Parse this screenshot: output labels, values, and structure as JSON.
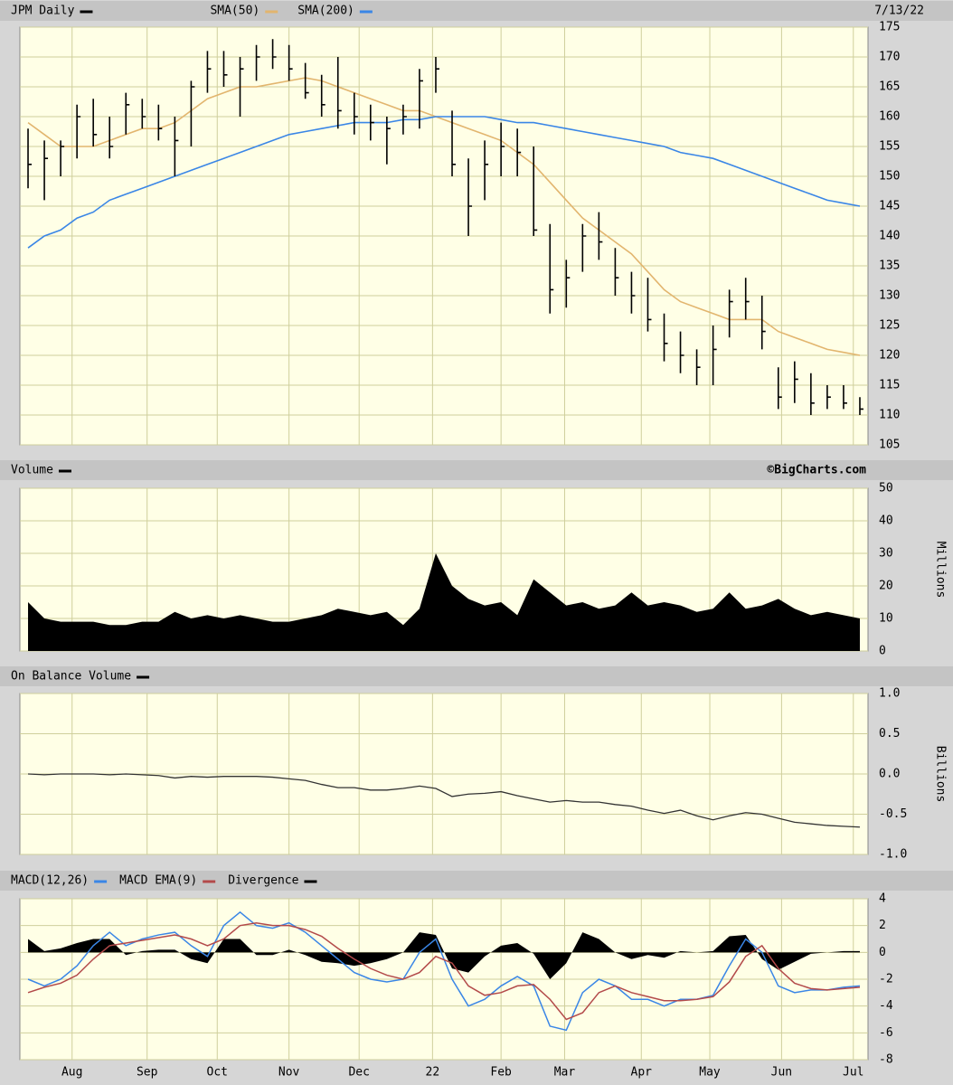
{
  "chart_data": [
    {
      "type": "ohlc",
      "title": "JPM Daily",
      "date": "7/13/22",
      "color": "#000000",
      "high": [
        158,
        156,
        156,
        162,
        163,
        160,
        164,
        163,
        162,
        160,
        166,
        171,
        171,
        170,
        172,
        173,
        172,
        169,
        167,
        170,
        164,
        162,
        160,
        162,
        168,
        170,
        161,
        153,
        156,
        159,
        158,
        155,
        142,
        136,
        142,
        144,
        138,
        134,
        133,
        127,
        124,
        121,
        125,
        131,
        133,
        130,
        118,
        119,
        117,
        115,
        115,
        113
      ],
      "low": [
        148,
        146,
        150,
        153,
        155,
        153,
        157,
        158,
        156,
        150,
        155,
        164,
        165,
        160,
        166,
        168,
        166,
        163,
        160,
        158,
        157,
        156,
        152,
        157,
        158,
        164,
        150,
        140,
        146,
        150,
        150,
        140,
        127,
        128,
        134,
        136,
        130,
        127,
        124,
        119,
        117,
        115,
        115,
        123,
        126,
        121,
        111,
        112,
        110,
        111,
        111,
        110
      ],
      "close": [
        152,
        153,
        155,
        160,
        157,
        155,
        162,
        160,
        158,
        156,
        165,
        168,
        167,
        168,
        170,
        170,
        168,
        164,
        162,
        161,
        160,
        159,
        158,
        160,
        166,
        168,
        152,
        145,
        152,
        155,
        154,
        141,
        131,
        133,
        140,
        139,
        133,
        130,
        126,
        122,
        120,
        118,
        121,
        129,
        129,
        124,
        113,
        116,
        112,
        113,
        112,
        111
      ],
      "overlays": [
        {
          "name": "SMA(50)",
          "color": "#e2b56e",
          "values": [
            159,
            157,
            155,
            155,
            155,
            156,
            157,
            158,
            158,
            159,
            161,
            163,
            164,
            165,
            165,
            165.5,
            166,
            166.5,
            166,
            165,
            164,
            163,
            162,
            161,
            161,
            160,
            159,
            158,
            157,
            156,
            154,
            152,
            149,
            146,
            143,
            141,
            139,
            137,
            134,
            131,
            129,
            128,
            127,
            126,
            126,
            126,
            124,
            123,
            122,
            121,
            120.5,
            120
          ]
        },
        {
          "name": "SMA(200)",
          "color": "#3a86e6",
          "values": [
            138,
            140,
            141,
            143,
            144,
            146,
            147,
            148,
            149,
            150,
            151,
            152,
            153,
            154,
            155,
            156,
            157,
            157.5,
            158,
            158.5,
            159,
            159,
            159,
            159.5,
            159.5,
            160,
            160,
            160,
            160,
            159.5,
            159,
            159,
            158.5,
            158,
            157.5,
            157,
            156.5,
            156,
            155.5,
            155,
            154,
            153.5,
            153,
            152,
            151,
            150,
            149,
            148,
            147,
            146,
            145.5,
            145
          ]
        }
      ],
      "ylim": [
        105,
        175
      ],
      "yticks": [
        105,
        110,
        115,
        120,
        125,
        130,
        135,
        140,
        145,
        150,
        155,
        160,
        165,
        170,
        175
      ]
    },
    {
      "type": "area",
      "title": "Volume",
      "credit": "©BigCharts.com",
      "axis_label": "Millions",
      "color": "#000000",
      "values": [
        15,
        10,
        9,
        9,
        9,
        8,
        8,
        9,
        9,
        12,
        10,
        11,
        10,
        11,
        10,
        9,
        9,
        10,
        11,
        13,
        12,
        11,
        12,
        8,
        13,
        30,
        20,
        16,
        14,
        15,
        11,
        22,
        18,
        14,
        15,
        13,
        14,
        18,
        14,
        15,
        14,
        12,
        13,
        18,
        13,
        14,
        16,
        13,
        11,
        12,
        11,
        10
      ],
      "ylim": [
        0,
        50
      ],
      "yticks": [
        0,
        10,
        20,
        30,
        40,
        50
      ]
    },
    {
      "type": "line",
      "title": "On Balance Volume",
      "axis_label": "Billions",
      "color": "#333333",
      "values": [
        0,
        -0.01,
        0,
        0,
        0,
        -0.01,
        0,
        -0.01,
        -0.02,
        -0.05,
        -0.03,
        -0.04,
        -0.03,
        -0.03,
        -0.03,
        -0.04,
        -0.06,
        -0.08,
        -0.13,
        -0.17,
        -0.17,
        -0.2,
        -0.2,
        -0.18,
        -0.15,
        -0.18,
        -0.28,
        -0.25,
        -0.24,
        -0.22,
        -0.27,
        -0.31,
        -0.35,
        -0.33,
        -0.35,
        -0.35,
        -0.38,
        -0.4,
        -0.45,
        -0.49,
        -0.45,
        -0.52,
        -0.57,
        -0.52,
        -0.48,
        -0.5,
        -0.55,
        -0.6,
        -0.62,
        -0.64,
        -0.65,
        -0.66
      ],
      "ylim": [
        -1,
        1
      ],
      "yticks": [
        {
          "value": -1,
          "label": "-1.0"
        },
        {
          "value": -0.5,
          "label": "-0.5"
        },
        {
          "value": 0,
          "label": "0.0"
        },
        {
          "value": 0.5,
          "label": "0.5"
        },
        {
          "value": 1,
          "label": "1.0"
        }
      ]
    },
    {
      "type": "macd",
      "series": [
        {
          "name": "MACD(12,26)",
          "color": "#3a86e6",
          "kind": "line",
          "values": [
            -2,
            -2.5,
            -2,
            -1,
            0.5,
            1.5,
            0.5,
            1,
            1.3,
            1.5,
            0.5,
            -0.3,
            2,
            3,
            2,
            1.8,
            2.2,
            1.5,
            0.5,
            -0.5,
            -1.5,
            -2,
            -2.2,
            -2,
            0,
            1,
            -2,
            -4,
            -3.5,
            -2.5,
            -1.8,
            -2.5,
            -5.5,
            -5.8,
            -3,
            -2,
            -2.5,
            -3.5,
            -3.5,
            -4,
            -3.5,
            -3.5,
            -3.2,
            -1,
            1,
            0,
            -2.5,
            -3,
            -2.8,
            -2.8,
            -2.6,
            -2.5
          ]
        },
        {
          "name": "MACD EMA(9)",
          "color": "#b34a4a",
          "kind": "line",
          "values": [
            -3,
            -2.6,
            -2.3,
            -1.7,
            -0.5,
            0.5,
            0.7,
            0.9,
            1.1,
            1.3,
            1,
            0.5,
            1,
            2,
            2.2,
            2,
            2,
            1.7,
            1.2,
            0.3,
            -0.5,
            -1.2,
            -1.7,
            -2,
            -1.5,
            -0.3,
            -0.8,
            -2.5,
            -3.2,
            -3,
            -2.5,
            -2.4,
            -3.5,
            -5,
            -4.5,
            -3,
            -2.5,
            -3,
            -3.3,
            -3.6,
            -3.6,
            -3.5,
            -3.3,
            -2.2,
            -0.3,
            0.5,
            -1.2,
            -2.3,
            -2.7,
            -2.8,
            -2.7,
            -2.6
          ]
        },
        {
          "name": "Divergence",
          "color": "#000000",
          "kind": "area",
          "values": [
            1,
            0.1,
            0.3,
            0.7,
            1,
            1,
            -0.2,
            0.1,
            0.2,
            0.2,
            -0.5,
            -0.8,
            1,
            1,
            -0.2,
            -0.2,
            0.2,
            -0.2,
            -0.7,
            -0.8,
            -1,
            -0.8,
            -0.5,
            0,
            1.5,
            1.3,
            -1.2,
            -1.5,
            -0.3,
            0.5,
            0.7,
            -0.1,
            -2,
            -0.8,
            1.5,
            1,
            0,
            -0.5,
            -0.2,
            -0.4,
            0.1,
            0,
            0.1,
            1.2,
            1.3,
            -0.5,
            -1.3,
            -0.7,
            -0.1,
            0,
            0.1,
            0.1
          ]
        }
      ],
      "ylim": [
        -8,
        4
      ],
      "yticks": [
        -8,
        -6,
        -4,
        -2,
        0,
        2,
        4
      ],
      "xlim": [
        -0.5,
        51.5
      ],
      "xticks": [
        {
          "value": 2.7,
          "label": "Aug"
        },
        {
          "value": 7.3,
          "label": "Sep"
        },
        {
          "value": 11.6,
          "label": "Oct"
        },
        {
          "value": 16,
          "label": "Nov"
        },
        {
          "value": 20.3,
          "label": "Dec"
        },
        {
          "value": 24.8,
          "label": "22"
        },
        {
          "value": 29,
          "label": "Feb"
        },
        {
          "value": 32.9,
          "label": "Mar"
        },
        {
          "value": 37.6,
          "label": "Apr"
        },
        {
          "value": 41.8,
          "label": "May"
        },
        {
          "value": 46.2,
          "label": "Jun"
        },
        {
          "value": 50.6,
          "label": "Jul"
        }
      ]
    }
  ]
}
